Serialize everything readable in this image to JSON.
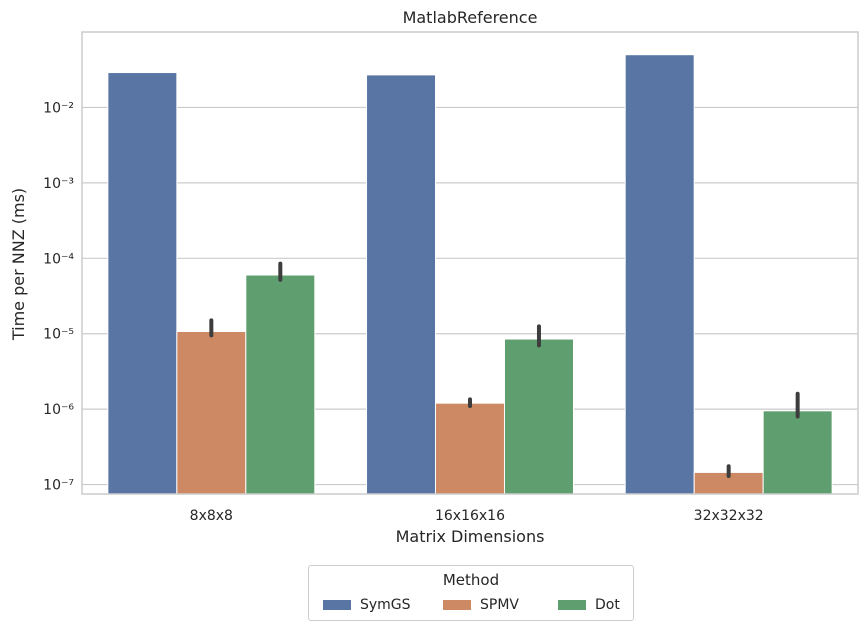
{
  "chart_data": {
    "type": "bar",
    "title": "MatlabReference",
    "xlabel": "Matrix Dimensions",
    "ylabel": "Time per NNZ (ms)",
    "yscale": "log",
    "ylim": [
      7.5e-08,
      0.1
    ],
    "yticks": [
      1e-07,
      1e-06,
      1e-05,
      0.0001,
      0.001,
      0.01
    ],
    "ytick_labels": [
      "10⁻⁷",
      "10⁻⁶",
      "10⁻⁵",
      "10⁻⁴",
      "10⁻³",
      "10⁻²"
    ],
    "grid": "y",
    "categories": [
      "8x8x8",
      "16x16x16",
      "32x32x32"
    ],
    "series": [
      {
        "name": "SymGS",
        "color": "#5875a4",
        "values": [
          0.029,
          0.027,
          0.05
        ],
        "err_low": [
          null,
          null,
          null
        ],
        "err_high": [
          null,
          null,
          null
        ]
      },
      {
        "name": "SPMV",
        "color": "#cc8963",
        "values": [
          1.07e-05,
          1.2e-06,
          1.45e-07
        ],
        "err_low": [
          9.5e-06,
          1.1e-06,
          1.3e-07
        ],
        "err_high": [
          1.5e-05,
          1.35e-06,
          1.75e-07
        ]
      },
      {
        "name": "Dot",
        "color": "#5f9e6e",
        "values": [
          6e-05,
          8.5e-06,
          9.5e-07
        ],
        "err_low": [
          5.2e-05,
          7e-06,
          8e-07
        ],
        "err_high": [
          8.5e-05,
          1.25e-05,
          1.6e-06
        ]
      }
    ],
    "legend": {
      "title": "Method",
      "position": "below"
    }
  }
}
